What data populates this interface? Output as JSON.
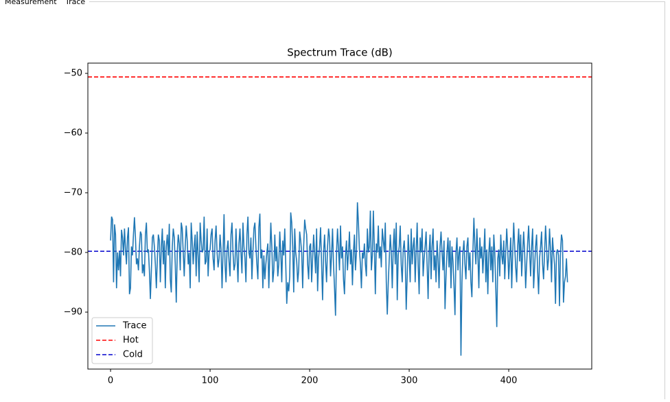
{
  "tabs": [
    "Measurement",
    "Trace"
  ],
  "chart_data": {
    "type": "line",
    "title": "Spectrum Trace (dB)",
    "xlim": [
      -22.8,
      483.4
    ],
    "xticks": [
      0,
      100,
      200,
      300,
      400
    ],
    "ylim": [
      -99.54,
      -48.28
    ],
    "yticks": [
      {
        "value": -90,
        "label": "−90"
      },
      {
        "value": -80,
        "label": "−80"
      },
      {
        "value": -70,
        "label": "−70"
      },
      {
        "value": -60,
        "label": "−60"
      },
      {
        "value": -50,
        "label": "−50"
      }
    ],
    "legend": "lower left",
    "series": [
      {
        "name": "Trace",
        "color": "#1f77b4",
        "values": [
          -78.0,
          -74.0,
          -74.5,
          -85.0,
          -75.3,
          -77.0,
          -86.0,
          -80.0,
          -83.0,
          -79.8,
          -84.0,
          -76.2,
          -77.5,
          -80.5,
          -76.0,
          -79.5,
          -82.0,
          -77.5,
          -75.8,
          -87.0,
          -86.0,
          -79.0,
          -80.5,
          -77.0,
          -74.1,
          -77.5,
          -82.0,
          -81.0,
          -83.0,
          -79.0,
          -76.5,
          -77.0,
          -83.5,
          -82.0,
          -84.0,
          -77.0,
          -75.0,
          -80.0,
          -79.5,
          -83.0,
          -87.8,
          -83.0,
          -77.5,
          -77.0,
          -79.0,
          -82.0,
          -86.0,
          -81.0,
          -77.0,
          -78.0,
          -85.0,
          -79.0,
          -76.0,
          -82.0,
          -78.0,
          -86.0,
          -79.0,
          -77.0,
          -80.5,
          -75.2,
          -84.5,
          -86.7,
          -79.0,
          -76.0,
          -77.5,
          -82.0,
          -88.4,
          -80.0,
          -77.0,
          -78.5,
          -83.0,
          -75.0,
          -76.0,
          -80.0,
          -84.0,
          -79.0,
          -75.5,
          -78.0,
          -82.0,
          -80.0,
          -86.0,
          -75.0,
          -78.0,
          -82.0,
          -79.0,
          -77.0,
          -84.0,
          -76.5,
          -80.5,
          -85.0,
          -75.0,
          -78.0,
          -80.0,
          -79.5,
          -74.0,
          -82.0,
          -81.5,
          -76.0,
          -84.0,
          -80.0,
          -79.5,
          -77.0,
          -76.0,
          -81.0,
          -83.0,
          -78.0,
          -75.5,
          -80.0,
          -82.5,
          -81.0,
          -77.0,
          -79.5,
          -86.0,
          -80.0,
          -73.6,
          -82.0,
          -85.0,
          -79.5,
          -78.0,
          -81.5,
          -84.0,
          -77.0,
          -75.0,
          -80.0,
          -83.0,
          -82.0,
          -76.0,
          -80.5,
          -85.0,
          -78.5,
          -76.0,
          -80.0,
          -83.5,
          -75.0,
          -79.0,
          -81.0,
          -85.0,
          -77.0,
          -74.0,
          -80.0,
          -81.0,
          -77.5,
          -84.5,
          -80.0,
          -76.0,
          -75.0,
          -79.0,
          -82.0,
          -84.5,
          -75.8,
          -73.5,
          -81.0,
          -79.5,
          -86.0,
          -80.5,
          -84.5,
          -82.0,
          -80.0,
          -78.5,
          -86.0,
          -80.5,
          -75.0,
          -79.0,
          -85.0,
          -83.0,
          -77.0,
          -81.5,
          -79.0,
          -84.0,
          -82.0,
          -76.5,
          -80.0,
          -85.0,
          -78.0,
          -80.5,
          -76.0,
          -82.0,
          -88.6,
          -85.0,
          -86.5,
          -84.0,
          -73.3,
          -75.0,
          -79.0,
          -86.7,
          -76.0,
          -80.0,
          -81.5,
          -85.0,
          -83.0,
          -76.5,
          -78.0,
          -80.0,
          -86.0,
          -79.0,
          -74.5,
          -76.0,
          -77.0,
          -82.0,
          -84.5,
          -79.0,
          -78.5,
          -85.0,
          -81.0,
          -77.0,
          -80.0,
          -83.5,
          -76.0,
          -86.5,
          -81.0,
          -79.0,
          -75.8,
          -82.0,
          -88.0,
          -80.0,
          -77.0,
          -81.5,
          -85.0,
          -79.0,
          -76.0,
          -77.5,
          -84.0,
          -80.5,
          -76.0,
          -82.0,
          -86.0,
          -90.6,
          -80.0,
          -76.0,
          -79.5,
          -83.0,
          -75.5,
          -81.0,
          -79.0,
          -84.5,
          -87.0,
          -80.5,
          -78.0,
          -83.0,
          -80.0,
          -76.5,
          -82.0,
          -79.5,
          -85.5,
          -80.0,
          -77.0,
          -83.0,
          -80.0,
          -71.6,
          -75.0,
          -79.5,
          -82.0,
          -86.0,
          -80.0,
          -81.0,
          -78.5,
          -82.0,
          -84.0,
          -76.0,
          -80.0,
          -79.0,
          -73.0,
          -83.0,
          -80.5,
          -73.0,
          -79.0,
          -87.0,
          -78.5,
          -80.0,
          -75.5,
          -81.0,
          -79.0,
          -82.5,
          -76.0,
          -78.0,
          -80.0,
          -75.0,
          -85.0,
          -90.4,
          -85.0,
          -81.0,
          -77.0,
          -80.0,
          -86.0,
          -79.0,
          -76.0,
          -82.0,
          -75.0,
          -88.0,
          -80.5,
          -79.0,
          -75.5,
          -82.0,
          -85.0,
          -79.5,
          -78.0,
          -81.0,
          -89.6,
          -84.0,
          -77.0,
          -80.5,
          -85.0,
          -76.0,
          -82.0,
          -79.0,
          -77.5,
          -85.0,
          -80.0,
          -75.0,
          -82.0,
          -87.0,
          -77.5,
          -80.0,
          -76.0,
          -84.0,
          -81.0,
          -79.0,
          -76.5,
          -82.0,
          -87.8,
          -80.0,
          -77.0,
          -84.5,
          -79.0,
          -76.0,
          -83.0,
          -80.5,
          -85.0,
          -78.0,
          -81.0,
          -86.0,
          -79.0,
          -76.5,
          -80.0,
          -83.0,
          -78.0,
          -89.5,
          -84.0,
          -80.0,
          -77.5,
          -82.5,
          -78.0,
          -86.0,
          -79.0,
          -81.5,
          -85.5,
          -90.5,
          -80.0,
          -77.5,
          -83.0,
          -80.0,
          -79.0,
          -97.3,
          -85.0,
          -80.0,
          -78.0,
          -82.0,
          -84.5,
          -79.0,
          -77.5,
          -83.0,
          -80.0,
          -85.0,
          -87.5,
          -80.0,
          -74.2,
          -79.0,
          -82.0,
          -76.0,
          -80.5,
          -86.0,
          -77.5,
          -81.0,
          -79.0,
          -83.5,
          -80.0,
          -76.0,
          -85.0,
          -79.5,
          -87.0,
          -80.0,
          -77.5,
          -83.0,
          -79.0,
          -85.0,
          -77.0,
          -80.0,
          -86.0,
          -92.5,
          -81.0,
          -79.5,
          -84.0,
          -77.0,
          -80.5,
          -82.0,
          -78.0,
          -84.5,
          -80.0,
          -76.0,
          -79.5,
          -84.5,
          -81.0,
          -77.5,
          -86.0,
          -80.0,
          -75.0,
          -79.0,
          -82.5,
          -85.0,
          -79.0,
          -76.0,
          -81.5,
          -77.0,
          -84.0,
          -80.0,
          -76.5,
          -80.0,
          -86.0,
          -82.0,
          -78.5,
          -75.5,
          -80.0,
          -84.0,
          -79.0,
          -76.0,
          -86.0,
          -82.5,
          -79.0,
          -77.0,
          -83.0,
          -87.0,
          -81.0,
          -79.0,
          -76.5,
          -82.0,
          -84.5,
          -80.0,
          -75.5,
          -79.0,
          -83.0,
          -81.0,
          -76.0,
          -79.5,
          -85.0,
          -77.5,
          -80.0,
          -82.0,
          -88.6,
          -80.0,
          -79.5,
          -80.5,
          -89.0,
          -80.0,
          -77.0,
          -78.0,
          -88.4,
          -85.0,
          -84.0,
          -81.0,
          -85.0
        ]
      }
    ],
    "hlines": [
      {
        "name": "Hot",
        "color": "#ff0000",
        "value": -50.6,
        "linestyle": "dashed"
      },
      {
        "name": "Cold",
        "color": "#0000cd",
        "value": -79.8,
        "linestyle": "dashed"
      }
    ]
  }
}
